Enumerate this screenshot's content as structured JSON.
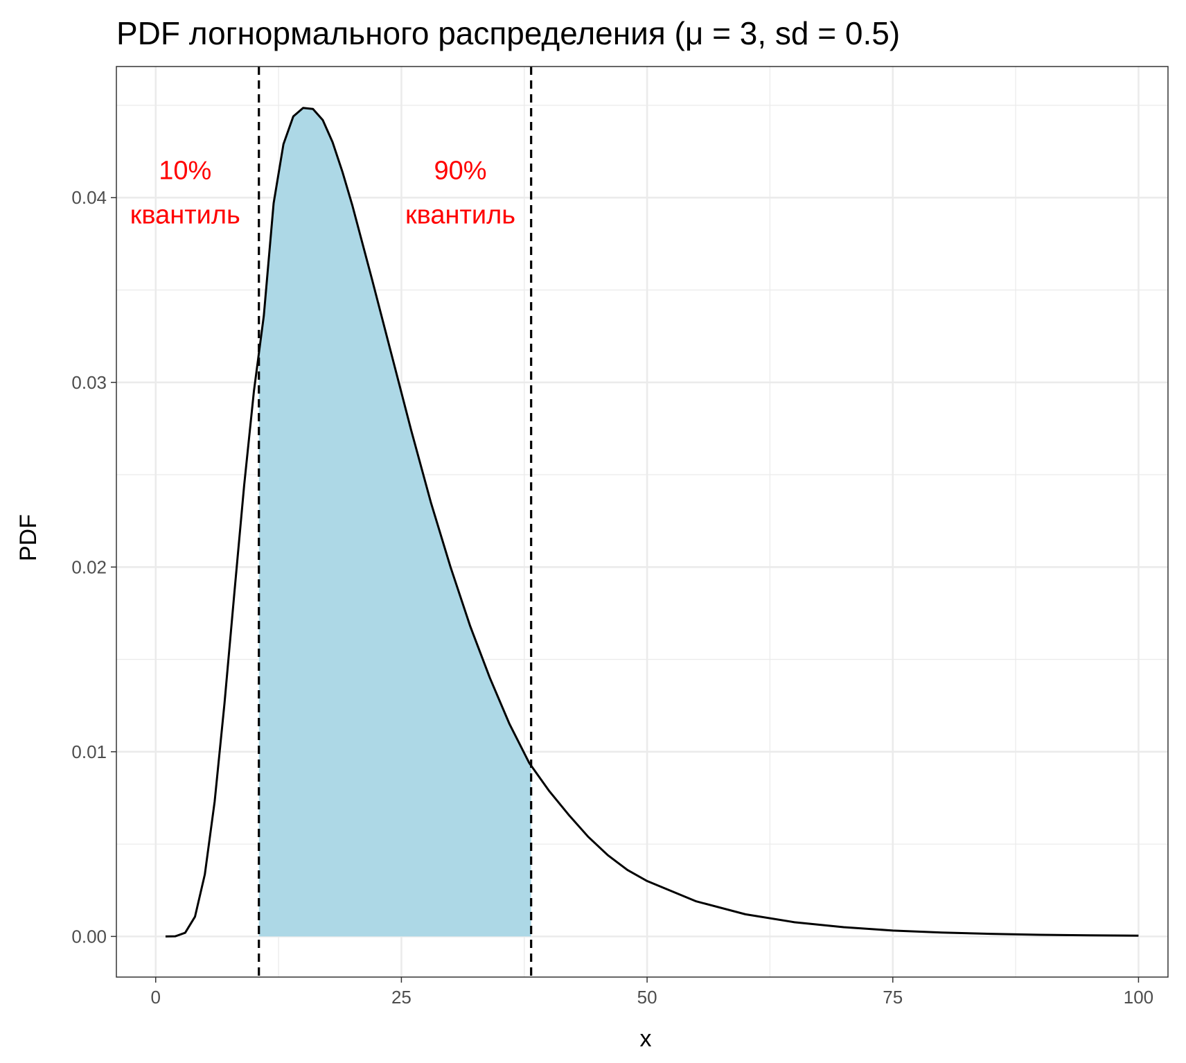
{
  "chart_data": {
    "type": "area",
    "title": "PDF логнормального распределения (μ = 3, sd = 0.5)",
    "xlabel": "x",
    "ylabel": "PDF",
    "xlim": [
      -4,
      103
    ],
    "ylim": [
      -0.0022,
      0.0471
    ],
    "x_ticks": [
      0,
      25,
      50,
      75,
      100
    ],
    "x_tick_labels": [
      "0",
      "25",
      "50",
      "75",
      "100"
    ],
    "y_ticks": [
      0.0,
      0.01,
      0.02,
      0.03,
      0.04
    ],
    "y_tick_labels": [
      "0.00",
      "0.01",
      "0.02",
      "0.03",
      "0.04"
    ],
    "grid": true,
    "series": [
      {
        "type": "line",
        "color": "#000000",
        "x": [
          1,
          2,
          3,
          4,
          5,
          6,
          7,
          8,
          9,
          10,
          11,
          12,
          13,
          14,
          15,
          16,
          17,
          18,
          19,
          20,
          22,
          24,
          26,
          28,
          30,
          32,
          34,
          36,
          38,
          40,
          42,
          44,
          46,
          48,
          50,
          55,
          60,
          65,
          70,
          75,
          80,
          85,
          90,
          95,
          100
        ],
        "y": [
          0.0,
          1e-05,
          0.0002,
          0.00107,
          0.00336,
          0.00731,
          0.01262,
          0.01857,
          0.02442,
          0.02955,
          0.0336,
          0.0397,
          0.0429,
          0.0444,
          0.04486,
          0.0448,
          0.0442,
          0.043,
          0.0414,
          0.0396,
          0.0356,
          0.0315,
          0.0274,
          0.0235,
          0.02,
          0.0168,
          0.014,
          0.0115,
          0.0094,
          0.0079,
          0.0066,
          0.0054,
          0.0044,
          0.0036,
          0.003,
          0.0019,
          0.0012,
          0.00077,
          0.0005,
          0.00032,
          0.00021,
          0.00014,
          9e-05,
          6e-05,
          4e-05
        ]
      }
    ],
    "shaded_region": {
      "x_from": 10.5,
      "x_to": 38.2,
      "color": "#add8e6"
    },
    "vlines": [
      {
        "x": 10.5,
        "style": "dashed",
        "color": "#000000"
      },
      {
        "x": 38.2,
        "style": "dashed",
        "color": "#000000"
      }
    ],
    "annotations": [
      {
        "line1": "10%",
        "line2": "квантиль",
        "x": 3,
        "y_line1": 0.041,
        "y_line2": 0.0386,
        "color": "#ff0000"
      },
      {
        "line1": "90%",
        "line2": "квантиль",
        "x": 31,
        "y_line1": 0.041,
        "y_line2": 0.0386,
        "color": "#ff0000"
      }
    ]
  }
}
